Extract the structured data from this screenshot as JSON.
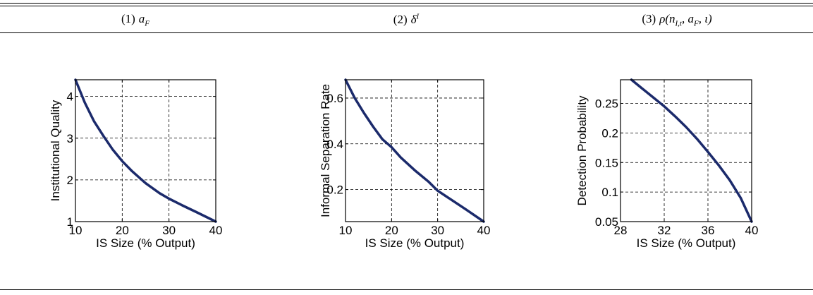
{
  "table": {
    "columns": [
      {
        "number": "(1)",
        "label": "a_F"
      },
      {
        "number": "(2)",
        "label": "δ^I"
      },
      {
        "number": "(3)",
        "label": "ρ(n_I,t, a_F, ι)"
      }
    ]
  },
  "chart_data": [
    {
      "type": "line",
      "title": "",
      "xlabel": "IS Size (% Output)",
      "ylabel": "Institutional Quality",
      "xlim": [
        10,
        40
      ],
      "ylim": [
        1,
        4.4
      ],
      "xticks": [
        10,
        20,
        30,
        40
      ],
      "xtick_labels": [
        "10",
        "20",
        "30",
        "40"
      ],
      "yticks": [
        1,
        2,
        3,
        4
      ],
      "ytick_labels": [
        "1",
        "2",
        "3",
        "4"
      ],
      "grid": true,
      "color": "#1b2a6b",
      "series": [
        {
          "x": [
            10,
            12,
            14,
            16,
            18,
            20,
            22,
            25,
            28,
            30,
            33,
            36,
            40
          ],
          "y": [
            4.4,
            3.85,
            3.4,
            3.05,
            2.72,
            2.45,
            2.22,
            1.92,
            1.68,
            1.55,
            1.38,
            1.22,
            1.0
          ]
        }
      ]
    },
    {
      "type": "line",
      "title": "",
      "xlabel": "IS Size (% Output)",
      "ylabel": "Informal Separation Rate",
      "xlim": [
        10,
        40
      ],
      "ylim": [
        0.06,
        0.68
      ],
      "xticks": [
        10,
        20,
        30,
        40
      ],
      "xtick_labels": [
        "10",
        "20",
        "30",
        "40"
      ],
      "yticks": [
        0.2,
        0.4,
        0.6
      ],
      "ytick_labels": [
        "0.2",
        "0.4",
        "0.6"
      ],
      "grid": true,
      "color": "#1b2a6b",
      "series": [
        {
          "x": [
            10,
            12,
            14,
            16,
            18,
            20,
            22,
            25,
            28,
            30,
            33,
            36,
            40
          ],
          "y": [
            0.68,
            0.6,
            0.535,
            0.475,
            0.42,
            0.385,
            0.34,
            0.285,
            0.235,
            0.195,
            0.155,
            0.115,
            0.06
          ]
        }
      ]
    },
    {
      "type": "line",
      "title": "",
      "xlabel": "IS Size (% Output)",
      "ylabel": "Detection Probability",
      "xlim": [
        28,
        40
      ],
      "ylim": [
        0.05,
        0.29
      ],
      "xticks": [
        28,
        32,
        36,
        40
      ],
      "xtick_labels": [
        "28",
        "32",
        "36",
        "40"
      ],
      "yticks": [
        0.05,
        0.1,
        0.15,
        0.2,
        0.25
      ],
      "ytick_labels": [
        "0.05",
        "0.1",
        "0.15",
        "0.2",
        "0.25"
      ],
      "grid": true,
      "color": "#1b2a6b",
      "series": [
        {
          "x": [
            29,
            30,
            31,
            32,
            33,
            34,
            35,
            36,
            37,
            38,
            39,
            40
          ],
          "y": [
            0.29,
            0.275,
            0.26,
            0.245,
            0.228,
            0.21,
            0.19,
            0.168,
            0.145,
            0.12,
            0.09,
            0.05
          ]
        }
      ]
    }
  ]
}
